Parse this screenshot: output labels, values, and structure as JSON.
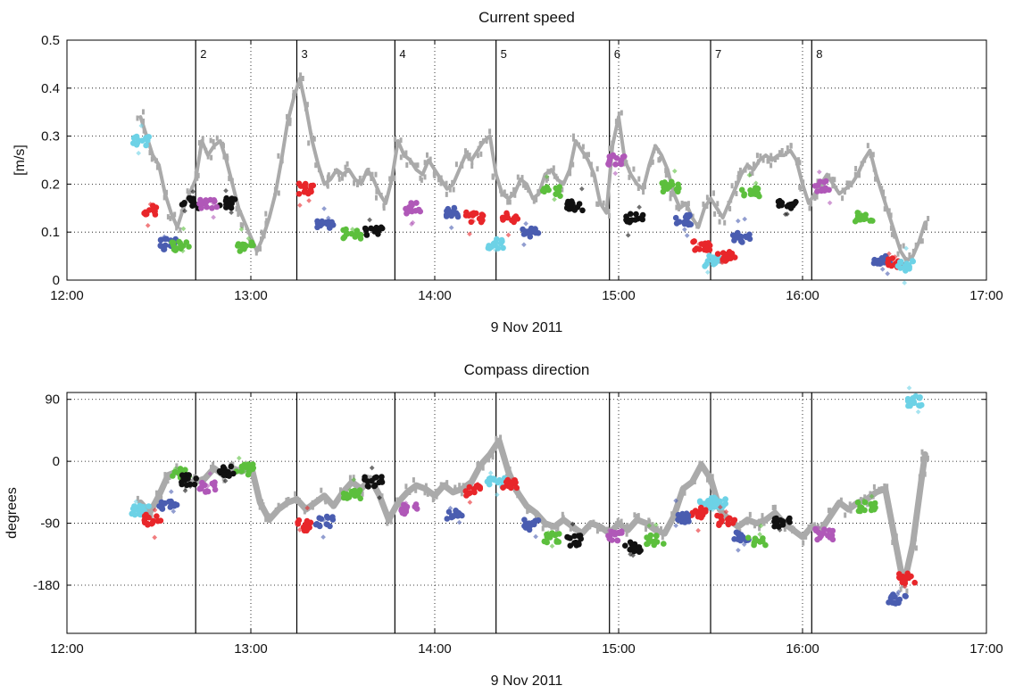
{
  "chart_data": [
    {
      "type": "scatter",
      "title": "Current speed",
      "xlabel": "9 Nov 2011",
      "ylabel": "[m/s]",
      "xlim": [
        "12:00",
        "17:00"
      ],
      "ylim": [
        0,
        0.5
      ],
      "x_tick_labels": [
        "12:00",
        "13:00",
        "14:00",
        "15:00",
        "16:00",
        "17:00"
      ],
      "y_ticks": [
        0,
        0.1,
        0.2,
        0.3,
        0.4,
        0.5
      ],
      "y_tick_labels": [
        "0",
        "0.1",
        "0.2",
        "0.3",
        "0.4",
        "0.5"
      ],
      "grid": true,
      "segment_boundaries": [
        "12:42",
        "13:15",
        "13:47",
        "14:20",
        "14:57",
        "15:30",
        "16:03"
      ],
      "segment_labels": [
        "2",
        "3",
        "4",
        "5",
        "6",
        "7",
        "8"
      ],
      "background_color": "#aaaaaa",
      "background_series": [
        [
          "12:24",
          0.34
        ],
        [
          "12:26",
          0.3
        ],
        [
          "12:28",
          0.26
        ],
        [
          "12:30",
          0.24
        ],
        [
          "12:32",
          0.18
        ],
        [
          "12:34",
          0.14
        ],
        [
          "12:36",
          0.11
        ],
        [
          "12:38",
          0.15
        ],
        [
          "12:40",
          0.18
        ],
        [
          "12:42",
          0.21
        ],
        [
          "12:44",
          0.29
        ],
        [
          "12:46",
          0.26
        ],
        [
          "12:48",
          0.28
        ],
        [
          "12:50",
          0.29
        ],
        [
          "12:52",
          0.25
        ],
        [
          "12:54",
          0.2
        ],
        [
          "12:56",
          0.15
        ],
        [
          "12:58",
          0.12
        ],
        [
          "13:00",
          0.09
        ],
        [
          "13:02",
          0.06
        ],
        [
          "13:04",
          0.09
        ],
        [
          "13:06",
          0.13
        ],
        [
          "13:08",
          0.18
        ],
        [
          "13:10",
          0.25
        ],
        [
          "13:12",
          0.33
        ],
        [
          "13:14",
          0.38
        ],
        [
          "13:16",
          0.42
        ],
        [
          "13:18",
          0.36
        ],
        [
          "13:20",
          0.29
        ],
        [
          "13:22",
          0.24
        ],
        [
          "13:24",
          0.2
        ],
        [
          "13:26",
          0.21
        ],
        [
          "13:28",
          0.23
        ],
        [
          "13:30",
          0.22
        ],
        [
          "13:32",
          0.23
        ],
        [
          "13:34",
          0.21
        ],
        [
          "13:36",
          0.2
        ],
        [
          "13:38",
          0.23
        ],
        [
          "13:40",
          0.21
        ],
        [
          "13:42",
          0.18
        ],
        [
          "13:44",
          0.16
        ],
        [
          "13:46",
          0.21
        ],
        [
          "13:48",
          0.29
        ],
        [
          "13:50",
          0.26
        ],
        [
          "13:52",
          0.25
        ],
        [
          "13:54",
          0.23
        ],
        [
          "13:56",
          0.22
        ],
        [
          "13:58",
          0.25
        ],
        [
          "14:00",
          0.23
        ],
        [
          "14:02",
          0.21
        ],
        [
          "14:04",
          0.19
        ],
        [
          "14:06",
          0.2
        ],
        [
          "14:08",
          0.23
        ],
        [
          "14:10",
          0.26
        ],
        [
          "14:12",
          0.25
        ],
        [
          "14:14",
          0.27
        ],
        [
          "14:16",
          0.29
        ],
        [
          "14:18",
          0.3
        ],
        [
          "14:20",
          0.22
        ],
        [
          "14:22",
          0.18
        ],
        [
          "14:24",
          0.17
        ],
        [
          "14:26",
          0.18
        ],
        [
          "14:28",
          0.21
        ],
        [
          "14:30",
          0.2
        ],
        [
          "14:32",
          0.17
        ],
        [
          "14:34",
          0.18
        ],
        [
          "14:36",
          0.22
        ],
        [
          "14:38",
          0.23
        ],
        [
          "14:40",
          0.21
        ],
        [
          "14:42",
          0.2
        ],
        [
          "14:44",
          0.23
        ],
        [
          "14:46",
          0.29
        ],
        [
          "14:48",
          0.27
        ],
        [
          "14:50",
          0.25
        ],
        [
          "14:52",
          0.22
        ],
        [
          "14:54",
          0.16
        ],
        [
          "14:56",
          0.14
        ],
        [
          "14:58",
          0.28
        ],
        [
          "15:00",
          0.34
        ],
        [
          "15:02",
          0.25
        ],
        [
          "15:04",
          0.22
        ],
        [
          "15:06",
          0.2
        ],
        [
          "15:08",
          0.19
        ],
        [
          "15:10",
          0.24
        ],
        [
          "15:12",
          0.28
        ],
        [
          "15:14",
          0.26
        ],
        [
          "15:16",
          0.23
        ],
        [
          "15:18",
          0.18
        ],
        [
          "15:20",
          0.15
        ],
        [
          "15:22",
          0.16
        ],
        [
          "15:24",
          0.13
        ],
        [
          "15:26",
          0.11
        ],
        [
          "15:28",
          0.15
        ],
        [
          "15:30",
          0.17
        ],
        [
          "15:32",
          0.15
        ],
        [
          "15:34",
          0.13
        ],
        [
          "15:36",
          0.16
        ],
        [
          "15:38",
          0.19
        ],
        [
          "15:40",
          0.22
        ],
        [
          "15:42",
          0.24
        ],
        [
          "15:44",
          0.23
        ],
        [
          "15:46",
          0.25
        ],
        [
          "15:48",
          0.26
        ],
        [
          "15:50",
          0.25
        ],
        [
          "15:52",
          0.26
        ],
        [
          "15:54",
          0.26
        ],
        [
          "15:56",
          0.27
        ],
        [
          "15:58",
          0.25
        ],
        [
          "16:00",
          0.2
        ],
        [
          "16:02",
          0.16
        ],
        [
          "16:04",
          0.18
        ],
        [
          "16:06",
          0.2
        ],
        [
          "16:08",
          0.22
        ],
        [
          "16:10",
          0.2
        ],
        [
          "16:12",
          0.18
        ],
        [
          "16:14",
          0.19
        ],
        [
          "16:16",
          0.2
        ],
        [
          "16:18",
          0.22
        ],
        [
          "16:20",
          0.25
        ],
        [
          "16:22",
          0.27
        ],
        [
          "16:24",
          0.22
        ],
        [
          "16:26",
          0.18
        ],
        [
          "16:28",
          0.14
        ],
        [
          "16:30",
          0.1
        ],
        [
          "16:32",
          0.06
        ],
        [
          "16:34",
          0.04
        ],
        [
          "16:36",
          0.05
        ],
        [
          "16:38",
          0.08
        ],
        [
          "16:40",
          0.12
        ]
      ],
      "cluster_series": [
        {
          "color": "#6dd2e6",
          "points": [
            [
              "12:24",
              0.29
            ],
            [
              "14:20",
              0.075
            ],
            [
              "15:31",
              0.04
            ]
          ]
        },
        {
          "color": "#e8262a",
          "points": [
            [
              "12:28",
              0.145
            ],
            [
              "13:18",
              0.19
            ],
            [
              "14:13",
              0.13
            ],
            [
              "14:25",
              0.13
            ],
            [
              "15:27",
              0.07
            ],
            [
              "15:35",
              0.05
            ]
          ]
        },
        {
          "color": "#4a5db0",
          "points": [
            [
              "12:33",
              0.075
            ],
            [
              "13:24",
              0.115
            ],
            [
              "14:06",
              0.14
            ],
            [
              "14:31",
              0.1
            ],
            [
              "15:21",
              0.125
            ],
            [
              "15:40",
              0.09
            ],
            [
              "16:26",
              0.04
            ]
          ]
        },
        {
          "color": "#5cbf3d",
          "points": [
            [
              "12:37",
              0.07
            ],
            [
              "12:58",
              0.07
            ],
            [
              "13:33",
              0.095
            ],
            [
              "14:38",
              0.185
            ],
            [
              "15:17",
              0.195
            ],
            [
              "15:43",
              0.185
            ],
            [
              "16:20",
              0.13
            ]
          ]
        },
        {
          "color": "#111111",
          "points": [
            [
              "12:40",
              0.16
            ],
            [
              "12:52",
              0.16
            ],
            [
              "13:40",
              0.1
            ],
            [
              "14:46",
              0.155
            ],
            [
              "15:05",
              0.13
            ],
            [
              "15:55",
              0.16
            ]
          ]
        },
        {
          "color": "#b058b8",
          "points": [
            [
              "12:46",
              0.16
            ],
            [
              "13:53",
              0.15
            ],
            [
              "14:59",
              0.25
            ],
            [
              "16:07",
              0.195
            ]
          ]
        },
        {
          "color": "#e8262a",
          "points": [
            [
              "16:30",
              0.035
            ]
          ]
        },
        {
          "color": "#6dd2e6",
          "points": [
            [
              "16:34",
              0.03
            ]
          ]
        }
      ]
    },
    {
      "type": "scatter",
      "title": "Compass direction",
      "xlabel": "9 Nov 2011",
      "ylabel": "degrees",
      "xlim": [
        "12:00",
        "17:00"
      ],
      "ylim": [
        -250,
        100
      ],
      "x_tick_labels": [
        "12:00",
        "13:00",
        "14:00",
        "15:00",
        "16:00",
        "17:00"
      ],
      "y_ticks": [
        90,
        0,
        -90,
        -180
      ],
      "y_tick_labels": [
        "90",
        "0",
        "-90",
        "-180"
      ],
      "grid": true,
      "segment_boundaries": [
        "12:42",
        "13:15",
        "13:47",
        "14:20",
        "14:57",
        "15:30",
        "16:03"
      ],
      "background_color": "#aaaaaa",
      "background_series": [
        [
          "12:24",
          -60
        ],
        [
          "12:27",
          -75
        ],
        [
          "12:30",
          -50
        ],
        [
          "12:33",
          -20
        ],
        [
          "12:36",
          -15
        ],
        [
          "12:39",
          -30
        ],
        [
          "12:42",
          -30
        ],
        [
          "12:45",
          -25
        ],
        [
          "12:48",
          -10
        ],
        [
          "12:51",
          -20
        ],
        [
          "12:54",
          -10
        ],
        [
          "12:57",
          -15
        ],
        [
          "13:00",
          -5
        ],
        [
          "13:03",
          -60
        ],
        [
          "13:06",
          -85
        ],
        [
          "13:09",
          -70
        ],
        [
          "13:12",
          -60
        ],
        [
          "13:15",
          -55
        ],
        [
          "13:18",
          -70
        ],
        [
          "13:21",
          -60
        ],
        [
          "13:24",
          -50
        ],
        [
          "13:27",
          -65
        ],
        [
          "13:30",
          -45
        ],
        [
          "13:33",
          -30
        ],
        [
          "13:36",
          -40
        ],
        [
          "13:39",
          -25
        ],
        [
          "13:42",
          -50
        ],
        [
          "13:45",
          -85
        ],
        [
          "13:48",
          -60
        ],
        [
          "13:51",
          -45
        ],
        [
          "13:54",
          -35
        ],
        [
          "13:57",
          -40
        ],
        [
          "14:00",
          -50
        ],
        [
          "14:03",
          -35
        ],
        [
          "14:06",
          -45
        ],
        [
          "14:09",
          -40
        ],
        [
          "14:12",
          -30
        ],
        [
          "14:15",
          -5
        ],
        [
          "14:18",
          10
        ],
        [
          "14:21",
          30
        ],
        [
          "14:24",
          -15
        ],
        [
          "14:27",
          -45
        ],
        [
          "14:30",
          -65
        ],
        [
          "14:33",
          -75
        ],
        [
          "14:36",
          -90
        ],
        [
          "14:39",
          -95
        ],
        [
          "14:42",
          -85
        ],
        [
          "14:45",
          -95
        ],
        [
          "14:48",
          -105
        ],
        [
          "14:51",
          -90
        ],
        [
          "14:54",
          -95
        ],
        [
          "14:57",
          -105
        ],
        [
          "15:00",
          -90
        ],
        [
          "15:03",
          -100
        ],
        [
          "15:06",
          -85
        ],
        [
          "15:09",
          -90
        ],
        [
          "15:12",
          -100
        ],
        [
          "15:15",
          -105
        ],
        [
          "15:18",
          -80
        ],
        [
          "15:21",
          -40
        ],
        [
          "15:24",
          -30
        ],
        [
          "15:27",
          -5
        ],
        [
          "15:30",
          -25
        ],
        [
          "15:33",
          -70
        ],
        [
          "15:36",
          -85
        ],
        [
          "15:39",
          -95
        ],
        [
          "15:42",
          -85
        ],
        [
          "15:45",
          -90
        ],
        [
          "15:48",
          -85
        ],
        [
          "15:51",
          -75
        ],
        [
          "15:54",
          -90
        ],
        [
          "15:57",
          -100
        ],
        [
          "16:00",
          -110
        ],
        [
          "16:03",
          -95
        ],
        [
          "16:06",
          -100
        ],
        [
          "16:09",
          -80
        ],
        [
          "16:12",
          -60
        ],
        [
          "16:15",
          -70
        ],
        [
          "16:18",
          -60
        ],
        [
          "16:21",
          -55
        ],
        [
          "16:24",
          -45
        ],
        [
          "16:27",
          -40
        ],
        [
          "16:30",
          -110
        ],
        [
          "16:33",
          -180
        ],
        [
          "16:36",
          -120
        ],
        [
          "16:39",
          -20
        ],
        [
          "16:40",
          10
        ]
      ],
      "cluster_series": [
        {
          "color": "#6dd2e6",
          "points": [
            [
              "12:24",
              -70
            ],
            [
              "14:20",
              -30
            ],
            [
              "15:29",
              -60
            ],
            [
              "15:32",
              -60
            ],
            [
              "16:36",
              88
            ]
          ]
        },
        {
          "color": "#e8262a",
          "points": [
            [
              "12:28",
              -85
            ],
            [
              "13:17",
              -93
            ],
            [
              "14:13",
              -42
            ],
            [
              "14:25",
              -32
            ],
            [
              "15:26",
              -75
            ],
            [
              "15:35",
              -85
            ],
            [
              "16:34",
              -170
            ]
          ]
        },
        {
          "color": "#4a5db0",
          "points": [
            [
              "12:33",
              -62
            ],
            [
              "13:24",
              -88
            ],
            [
              "14:06",
              -78
            ],
            [
              "14:31",
              -92
            ],
            [
              "15:20",
              -83
            ],
            [
              "15:40",
              -110
            ],
            [
              "16:31",
              -200
            ]
          ]
        },
        {
          "color": "#5cbf3d",
          "points": [
            [
              "12:37",
              -18
            ],
            [
              "12:58",
              -12
            ],
            [
              "13:33",
              -48
            ],
            [
              "14:38",
              -110
            ],
            [
              "15:12",
              -115
            ],
            [
              "15:45",
              -115
            ],
            [
              "16:21",
              -65
            ]
          ]
        },
        {
          "color": "#111111",
          "points": [
            [
              "12:40",
              -27
            ],
            [
              "12:52",
              -15
            ],
            [
              "13:40",
              -30
            ],
            [
              "14:46",
              -115
            ],
            [
              "15:05",
              -125
            ],
            [
              "15:53",
              -88
            ]
          ]
        },
        {
          "color": "#b058b8",
          "points": [
            [
              "12:46",
              -37
            ],
            [
              "13:52",
              -70
            ],
            [
              "14:59",
              -108
            ],
            [
              "16:07",
              -106
            ]
          ]
        }
      ]
    }
  ]
}
